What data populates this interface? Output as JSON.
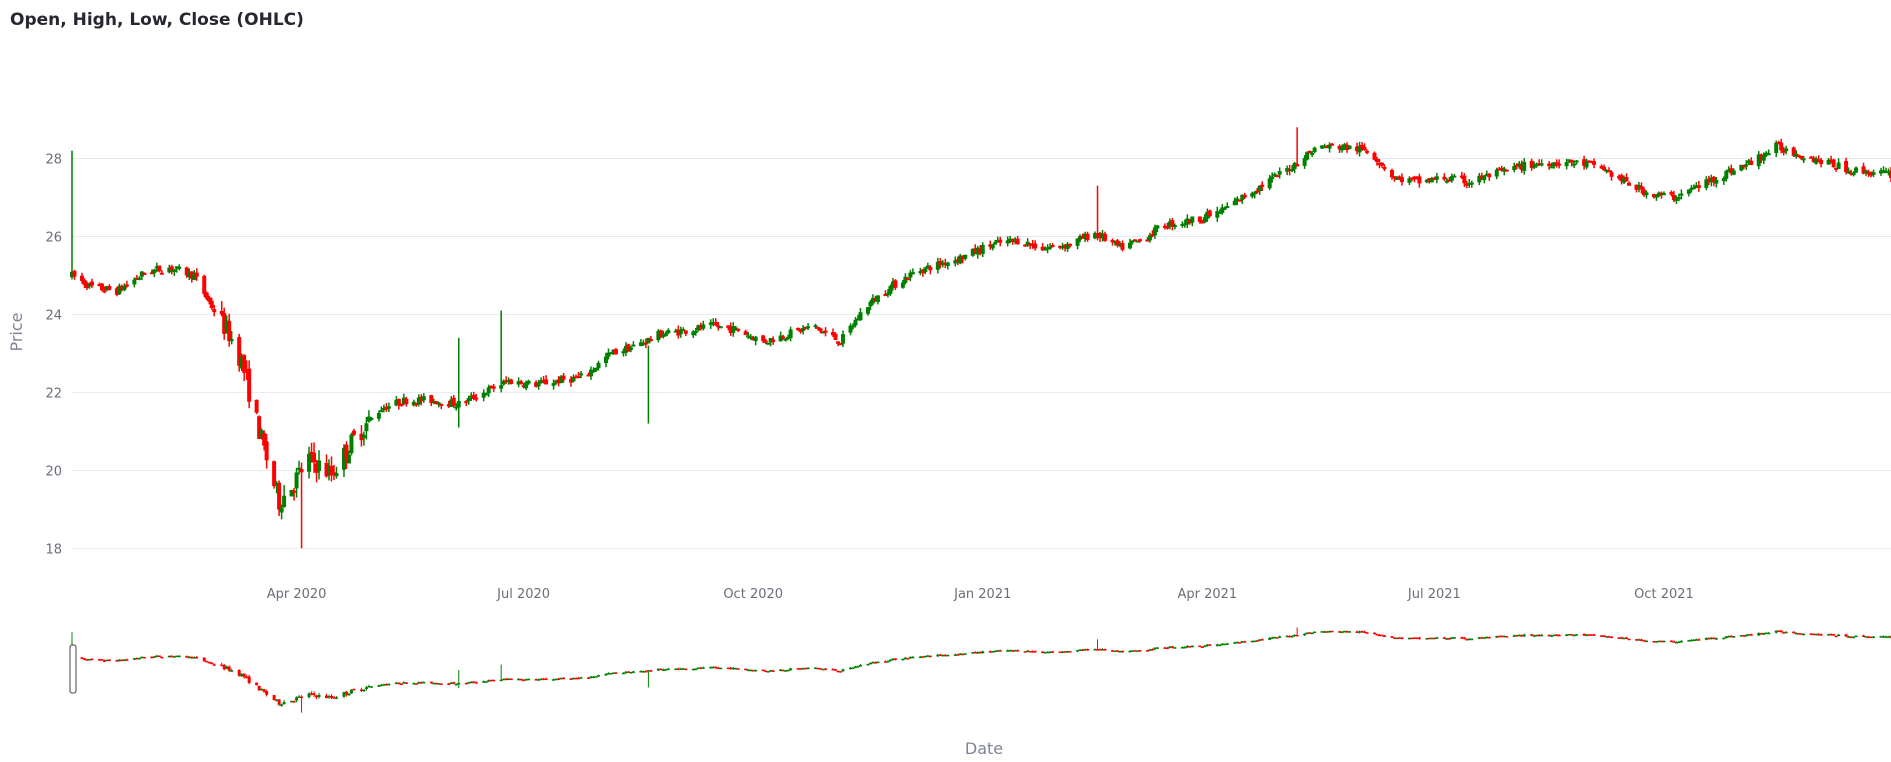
{
  "header": {
    "title": "Open, High, Low, Close (OHLC)"
  },
  "chart_data": {
    "type": "candlestick",
    "title": "Open, High, Low, Close (OHLC)",
    "xlabel": "Date",
    "ylabel": "Price",
    "xrange": [
      "2020-01-02",
      "2021-12-31"
    ],
    "ylim": [
      17.7,
      29.5
    ],
    "yticks": [
      18,
      20,
      22,
      24,
      26,
      28
    ],
    "xticks": [
      {
        "date": "2020-04-01",
        "label": "Apr 2020"
      },
      {
        "date": "2020-07-01",
        "label": "Jul 2020"
      },
      {
        "date": "2020-10-01",
        "label": "Oct 2020"
      },
      {
        "date": "2021-01-01",
        "label": "Jan 2021"
      },
      {
        "date": "2021-04-01",
        "label": "Apr 2021"
      },
      {
        "date": "2021-07-01",
        "label": "Jul 2021"
      },
      {
        "date": "2021-10-01",
        "label": "Oct 2021"
      }
    ],
    "grid": true,
    "increasing_color": "#008000",
    "decreasing_color": "#ff0000",
    "rangeslider": true,
    "anchors": [
      [
        "2020-01-02",
        25.0
      ],
      [
        "2020-01-10",
        24.7
      ],
      [
        "2020-01-20",
        24.6
      ],
      [
        "2020-02-01",
        25.1
      ],
      [
        "2020-02-10",
        25.2
      ],
      [
        "2020-02-20",
        25.0
      ],
      [
        "2020-02-27",
        24.2
      ],
      [
        "2020-03-05",
        23.5
      ],
      [
        "2020-03-10",
        22.8
      ],
      [
        "2020-03-15",
        21.5
      ],
      [
        "2020-03-20",
        20.3
      ],
      [
        "2020-03-25",
        19.2
      ],
      [
        "2020-03-30",
        19.6
      ],
      [
        "2020-04-06",
        20.3
      ],
      [
        "2020-04-15",
        19.9
      ],
      [
        "2020-04-25",
        20.9
      ],
      [
        "2020-05-05",
        21.6
      ],
      [
        "2020-05-15",
        21.8
      ],
      [
        "2020-05-25",
        21.8
      ],
      [
        "2020-06-05",
        21.7
      ],
      [
        "2020-06-15",
        22.0
      ],
      [
        "2020-06-25",
        22.3
      ],
      [
        "2020-07-05",
        22.2
      ],
      [
        "2020-07-15",
        22.3
      ],
      [
        "2020-07-25",
        22.4
      ],
      [
        "2020-08-05",
        23.0
      ],
      [
        "2020-08-15",
        23.2
      ],
      [
        "2020-08-25",
        23.5
      ],
      [
        "2020-09-05",
        23.6
      ],
      [
        "2020-09-15",
        23.7
      ],
      [
        "2020-09-25",
        23.6
      ],
      [
        "2020-10-05",
        23.3
      ],
      [
        "2020-10-15",
        23.5
      ],
      [
        "2020-10-25",
        23.7
      ],
      [
        "2020-11-05",
        23.3
      ],
      [
        "2020-11-15",
        24.2
      ],
      [
        "2020-11-25",
        24.7
      ],
      [
        "2020-12-05",
        25.1
      ],
      [
        "2020-12-15",
        25.3
      ],
      [
        "2020-12-25",
        25.5
      ],
      [
        "2021-01-05",
        25.8
      ],
      [
        "2021-01-15",
        25.9
      ],
      [
        "2021-01-25",
        25.7
      ],
      [
        "2021-02-05",
        25.8
      ],
      [
        "2021-02-15",
        26.1
      ],
      [
        "2021-02-25",
        25.7
      ],
      [
        "2021-03-05",
        25.9
      ],
      [
        "2021-03-15",
        26.3
      ],
      [
        "2021-03-25",
        26.4
      ],
      [
        "2021-04-05",
        26.6
      ],
      [
        "2021-04-15",
        27.0
      ],
      [
        "2021-04-25",
        27.4
      ],
      [
        "2021-05-05",
        27.8
      ],
      [
        "2021-05-15",
        28.3
      ],
      [
        "2021-05-25",
        28.3
      ],
      [
        "2021-06-05",
        28.2
      ],
      [
        "2021-06-15",
        27.5
      ],
      [
        "2021-06-25",
        27.4
      ],
      [
        "2021-07-05",
        27.5
      ],
      [
        "2021-07-15",
        27.4
      ],
      [
        "2021-07-25",
        27.6
      ],
      [
        "2021-08-05",
        27.8
      ],
      [
        "2021-08-15",
        27.9
      ],
      [
        "2021-08-25",
        27.9
      ],
      [
        "2021-09-05",
        27.8
      ],
      [
        "2021-09-15",
        27.4
      ],
      [
        "2021-09-25",
        27.1
      ],
      [
        "2021-10-05",
        27.0
      ],
      [
        "2021-10-15",
        27.3
      ],
      [
        "2021-10-25",
        27.6
      ],
      [
        "2021-11-05",
        27.9
      ],
      [
        "2021-11-15",
        28.3
      ],
      [
        "2021-11-25",
        28.1
      ],
      [
        "2021-12-05",
        27.9
      ],
      [
        "2021-12-15",
        27.7
      ],
      [
        "2021-12-31",
        27.6
      ]
    ],
    "spikes": [
      {
        "date": "2020-01-02",
        "high": 28.2,
        "low": 24.9
      },
      {
        "date": "2020-04-03",
        "high": 20.2,
        "low": 18.0
      },
      {
        "date": "2020-06-05",
        "high": 23.4,
        "low": 21.1
      },
      {
        "date": "2020-06-22",
        "high": 24.1,
        "low": 22.0
      },
      {
        "date": "2020-08-20",
        "high": 23.2,
        "low": 21.2
      },
      {
        "date": "2021-02-16",
        "high": 27.3,
        "low": 25.9
      },
      {
        "date": "2021-05-07",
        "high": 28.8,
        "low": 27.8
      }
    ]
  }
}
